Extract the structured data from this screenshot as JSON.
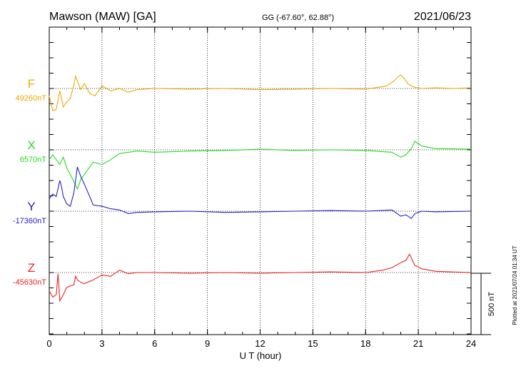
{
  "chart_data": {
    "type": "line",
    "title": "Mawson (MAW)  [GA]",
    "coords": "GG (-67.60°,  62.88°)",
    "date": "2021/06/23",
    "xlabel": "U T (hour)",
    "xlim": [
      0,
      24
    ],
    "xticks": [
      "0",
      "3",
      "6",
      "9",
      "12",
      "15",
      "18",
      "21",
      "24"
    ],
    "scale_label": "500 nT",
    "scale_nT": 500,
    "plotted_note": "Plotted at 2021/07/24 01:34 UT",
    "grid": true,
    "series": [
      {
        "name": "F",
        "baseline": "49260nT",
        "color": "#f0a800",
        "x": [
          0,
          0.2,
          0.4,
          0.6,
          0.8,
          1.0,
          1.2,
          1.4,
          1.5,
          1.6,
          1.8,
          2.0,
          2.3,
          2.6,
          3.0,
          3.5,
          4.0,
          4.5,
          5.0,
          6,
          8,
          10,
          12,
          14,
          16,
          18,
          19.2,
          19.6,
          19.8,
          20.0,
          20.2,
          20.4,
          20.6,
          20.8,
          21.2,
          22,
          23,
          24
        ],
        "y": [
          -60,
          -180,
          -170,
          -20,
          -150,
          -110,
          -80,
          30,
          100,
          60,
          -10,
          40,
          -40,
          -60,
          20,
          -20,
          0,
          -30,
          -10,
          0,
          -5,
          0,
          -10,
          -5,
          0,
          -5,
          20,
          60,
          90,
          110,
          80,
          40,
          20,
          10,
          0,
          5,
          0,
          5
        ]
      },
      {
        "name": "X",
        "baseline": "6570nT",
        "color": "#22dd22",
        "x": [
          0,
          0.2,
          0.4,
          0.6,
          0.8,
          1.0,
          1.2,
          1.4,
          1.6,
          1.8,
          2.0,
          2.5,
          3.0,
          3.5,
          4.0,
          4.5,
          5.0,
          6,
          8,
          10,
          12,
          14,
          16,
          18,
          19.5,
          20.0,
          20.3,
          20.6,
          20.8,
          21.2,
          22,
          24
        ],
        "y": [
          -80,
          -40,
          -80,
          -120,
          -60,
          -150,
          -200,
          -260,
          -320,
          -240,
          -200,
          -100,
          -120,
          -80,
          -30,
          -20,
          -10,
          -20,
          -10,
          -5,
          5,
          -5,
          0,
          -5,
          -20,
          -60,
          -40,
          10,
          70,
          30,
          10,
          5
        ]
      },
      {
        "name": "Y",
        "baseline": "-17360nT",
        "color": "#2222cc",
        "x": [
          0,
          0.2,
          0.4,
          0.6,
          0.7,
          0.8,
          1.0,
          1.2,
          1.4,
          1.6,
          1.8,
          2.0,
          2.5,
          3.0,
          3.5,
          4.0,
          4.5,
          5.0,
          6,
          8,
          10,
          12,
          14,
          16,
          18,
          19.5,
          20.0,
          20.3,
          20.6,
          20.8,
          21.2,
          22,
          24
        ],
        "y": [
          100,
          140,
          120,
          250,
          200,
          120,
          60,
          40,
          150,
          360,
          280,
          220,
          50,
          40,
          20,
          10,
          -20,
          -10,
          -5,
          0,
          -10,
          -5,
          0,
          5,
          0,
          10,
          -40,
          -30,
          -60,
          -20,
          0,
          -5,
          0
        ]
      },
      {
        "name": "Z",
        "baseline": "-45630nT",
        "color": "#ee2222",
        "x": [
          0,
          0.2,
          0.4,
          0.5,
          0.6,
          0.8,
          1.0,
          1.2,
          1.4,
          1.5,
          1.6,
          1.8,
          2.0,
          2.5,
          3.0,
          3.5,
          4.0,
          4.5,
          5.0,
          6,
          8,
          10,
          12,
          14,
          16,
          18,
          19.0,
          19.5,
          20.0,
          20.3,
          20.5,
          20.8,
          21.2,
          22,
          24
        ],
        "y": [
          -150,
          -200,
          -180,
          -10,
          -230,
          -180,
          -120,
          -110,
          -100,
          -30,
          -60,
          -80,
          -90,
          -60,
          -20,
          -30,
          20,
          -10,
          0,
          0,
          -5,
          0,
          -5,
          0,
          5,
          0,
          20,
          40,
          80,
          100,
          150,
          60,
          30,
          10,
          0
        ]
      }
    ]
  }
}
